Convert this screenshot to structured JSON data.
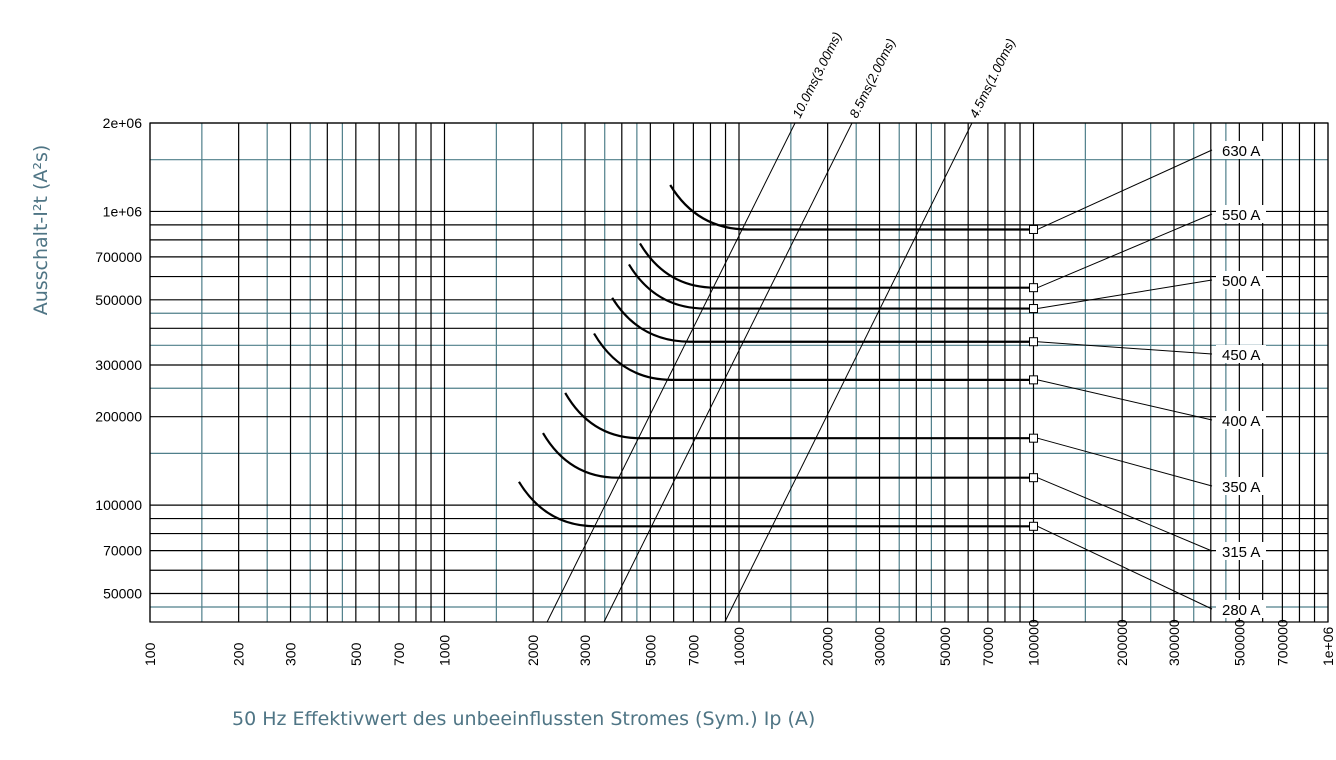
{
  "chart_data": {
    "type": "line",
    "log_scale": {
      "x": true,
      "y": true
    },
    "x_label": "50 Hz Effektivwert des unbeeinflussten Stromes (Sym.) Ip (A)",
    "y_label": "Ausschalt-I²t (A²s)",
    "xlim": [
      100,
      1000000
    ],
    "ylim": [
      40000,
      2000000
    ],
    "xticks": [
      100,
      200,
      300,
      500,
      700,
      1000,
      2000,
      3000,
      5000,
      7000,
      10000,
      20000,
      30000,
      50000,
      70000,
      100000,
      200000,
      300000,
      500000,
      700000,
      {
        "value": 1000000,
        "label": "1e+06"
      }
    ],
    "yticks": [
      50000,
      70000,
      100000,
      200000,
      300000,
      500000,
      700000,
      {
        "value": 1000000,
        "label": "1e+06"
      },
      {
        "value": 2000000,
        "label": "2e+06"
      }
    ],
    "x_minor_grid": [
      400,
      600,
      800,
      900,
      4000,
      6000,
      8000,
      9000,
      40000,
      60000,
      80000,
      90000,
      400000,
      600000,
      800000,
      900000
    ],
    "x_half_grid": [
      150,
      250,
      350,
      450,
      1500,
      2500,
      3500,
      4500,
      15000,
      25000,
      35000,
      45000,
      150000,
      250000,
      350000,
      450000
    ],
    "y_minor_grid": [
      60000,
      80000,
      90000,
      400000,
      600000,
      800000,
      900000
    ],
    "y_half_grid": [
      45000,
      150000,
      250000,
      350000,
      450000,
      1500000
    ],
    "grid_color": "#000000",
    "half_grid_color": "#4f7f8a",
    "series": [
      {
        "name": "630 A",
        "color": "#000000",
        "x": [
          5840,
          10700,
          100000
        ],
        "values": [
          1230000,
          868000,
          868000
        ]
      },
      {
        "name": "550 A",
        "color": "#000000",
        "x": [
          4610,
          8300,
          100000
        ],
        "values": [
          778000,
          550000,
          550000
        ]
      },
      {
        "name": "500 A",
        "color": "#000000",
        "x": [
          4230,
          7670,
          100000
        ],
        "values": [
          660000,
          467000,
          467000
        ]
      },
      {
        "name": "450 A",
        "color": "#000000",
        "x": [
          3710,
          6820,
          100000
        ],
        "values": [
          508000,
          360000,
          360000
        ]
      },
      {
        "name": "400 A",
        "color": "#000000",
        "x": [
          3220,
          5920,
          100000
        ],
        "values": [
          384000,
          267000,
          267000
        ]
      },
      {
        "name": "350 A",
        "color": "#000000",
        "x": [
          2570,
          4610,
          100000
        ],
        "values": [
          241000,
          169000,
          169000
        ]
      },
      {
        "name": "315 A",
        "color": "#000000",
        "x": [
          2160,
          3880,
          100000
        ],
        "values": [
          176000,
          124000,
          124000
        ]
      },
      {
        "name": "280 A",
        "color": "#000000",
        "x": [
          1790,
          3270,
          100000
        ],
        "values": [
          120000,
          84700,
          84700
        ]
      }
    ],
    "annotations": [
      {
        "label": "10.0ms(3.00ms)",
        "x": [
          2230,
          15500
        ],
        "values": [
          40000,
          2000000
        ]
      },
      {
        "label": "8.5ms(2.00ms)",
        "x": [
          3480,
          24200
        ],
        "values": [
          40000,
          2000000
        ]
      },
      {
        "label": "4.5ms(1.00ms)",
        "x": [
          8950,
          61800
        ],
        "values": [
          40000,
          2000000
        ]
      }
    ]
  }
}
